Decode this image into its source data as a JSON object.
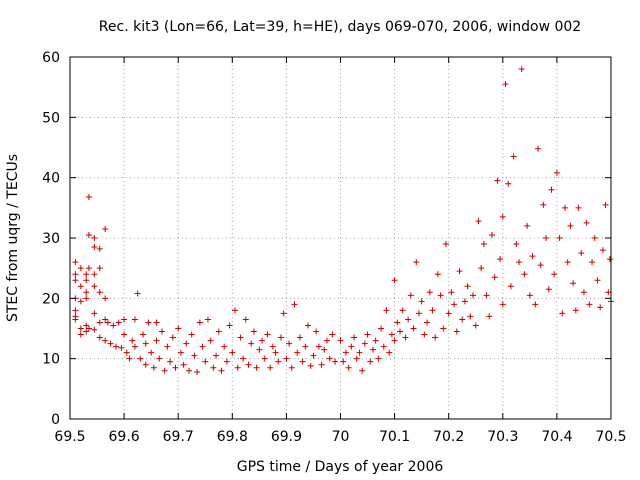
{
  "chart_data": {
    "type": "scatter",
    "title": "Rec. kit3 (Lon=66, Lat=39, h=HE), days 069-070, 2006, window 002",
    "xlabel": "GPS time / Days of year 2006",
    "ylabel": "STEC from uqrg / TECUs",
    "xlim": [
      69.5,
      70.5
    ],
    "ylim": [
      0,
      60
    ],
    "xticks": [
      "69.5",
      "69.6",
      "69.7",
      "69.8",
      "69.9",
      "70",
      "70.1",
      "70.2",
      "70.3",
      "70.4",
      "70.5"
    ],
    "yticks": [
      "0",
      "10",
      "20",
      "30",
      "40",
      "50",
      "60"
    ],
    "grid": true,
    "marker": "plus",
    "color": "#cc0000",
    "series": [
      {
        "name": "STEC",
        "points": [
          [
            69.51,
            26
          ],
          [
            69.51,
            24
          ],
          [
            69.51,
            23
          ],
          [
            69.51,
            20
          ],
          [
            69.51,
            18
          ],
          [
            69.51,
            17
          ],
          [
            69.51,
            16.5
          ],
          [
            69.52,
            25
          ],
          [
            69.52,
            22
          ],
          [
            69.52,
            19.5
          ],
          [
            69.52,
            15
          ],
          [
            69.52,
            14
          ],
          [
            69.53,
            24
          ],
          [
            69.53,
            23
          ],
          [
            69.53,
            21
          ],
          [
            69.53,
            20
          ],
          [
            69.53,
            15.5
          ],
          [
            69.53,
            14.5
          ],
          [
            69.535,
            36.8
          ],
          [
            69.535,
            30.5
          ],
          [
            69.535,
            25
          ],
          [
            69.535,
            15
          ],
          [
            69.545,
            30
          ],
          [
            69.545,
            28.5
          ],
          [
            69.545,
            24
          ],
          [
            69.545,
            22
          ],
          [
            69.545,
            17.5
          ],
          [
            69.545,
            14.8
          ],
          [
            69.555,
            28.2
          ],
          [
            69.555,
            25
          ],
          [
            69.555,
            21
          ],
          [
            69.555,
            16
          ],
          [
            69.555,
            13.5
          ],
          [
            69.565,
            31.5
          ],
          [
            69.565,
            20
          ],
          [
            69.565,
            16.5
          ],
          [
            69.565,
            13
          ],
          [
            69.57,
            16
          ],
          [
            69.575,
            12.5
          ],
          [
            69.58,
            15.5
          ],
          [
            69.585,
            12
          ],
          [
            69.59,
            16
          ],
          [
            69.595,
            11.8
          ],
          [
            69.6,
            16.5
          ],
          [
            69.6,
            14
          ],
          [
            69.605,
            11
          ],
          [
            69.61,
            10
          ],
          [
            69.615,
            13
          ],
          [
            69.62,
            12
          ],
          [
            69.62,
            16.5
          ],
          [
            69.625,
            20.8
          ],
          [
            69.63,
            10
          ],
          [
            69.635,
            14
          ],
          [
            69.64,
            9
          ],
          [
            69.64,
            12.5
          ],
          [
            69.645,
            16
          ],
          [
            69.65,
            11
          ],
          [
            69.655,
            8.5
          ],
          [
            69.66,
            13
          ],
          [
            69.66,
            16
          ],
          [
            69.665,
            10
          ],
          [
            69.67,
            14.5
          ],
          [
            69.675,
            8
          ],
          [
            69.68,
            12
          ],
          [
            69.685,
            9.5
          ],
          [
            69.69,
            13.5
          ],
          [
            69.695,
            8.5
          ],
          [
            69.7,
            15
          ],
          [
            69.705,
            11
          ],
          [
            69.71,
            9
          ],
          [
            69.715,
            12.5
          ],
          [
            69.72,
            8
          ],
          [
            69.725,
            14
          ],
          [
            69.73,
            10.5
          ],
          [
            69.735,
            7.8
          ],
          [
            69.74,
            16
          ],
          [
            69.745,
            12
          ],
          [
            69.75,
            9.5
          ],
          [
            69.755,
            16.5
          ],
          [
            69.76,
            13
          ],
          [
            69.765,
            8.5
          ],
          [
            69.77,
            10.5
          ],
          [
            69.775,
            14.5
          ],
          [
            69.78,
            8
          ],
          [
            69.785,
            12
          ],
          [
            69.79,
            9.5
          ],
          [
            69.795,
            15.5
          ],
          [
            69.8,
            11
          ],
          [
            69.805,
            18
          ],
          [
            69.81,
            8.5
          ],
          [
            69.815,
            13.5
          ],
          [
            69.82,
            10
          ],
          [
            69.825,
            16.5
          ],
          [
            69.83,
            9
          ],
          [
            69.835,
            12.5
          ],
          [
            69.84,
            14.5
          ],
          [
            69.845,
            8.5
          ],
          [
            69.85,
            11.5
          ],
          [
            69.855,
            13
          ],
          [
            69.86,
            10
          ],
          [
            69.865,
            14
          ],
          [
            69.87,
            8.5
          ],
          [
            69.875,
            12
          ],
          [
            69.88,
            11
          ],
          [
            69.885,
            9.5
          ],
          [
            69.89,
            13.5
          ],
          [
            69.895,
            17.5
          ],
          [
            69.9,
            10
          ],
          [
            69.905,
            12.5
          ],
          [
            69.91,
            8.5
          ],
          [
            69.915,
            19
          ],
          [
            69.92,
            11
          ],
          [
            69.925,
            13.5
          ],
          [
            69.93,
            9.5
          ],
          [
            69.935,
            12
          ],
          [
            69.94,
            15.5
          ],
          [
            69.945,
            8.8
          ],
          [
            69.95,
            10.5
          ],
          [
            69.955,
            14.5
          ],
          [
            69.96,
            12
          ],
          [
            69.965,
            9
          ],
          [
            69.97,
            11.5
          ],
          [
            69.975,
            13
          ],
          [
            69.98,
            10
          ],
          [
            69.985,
            14
          ],
          [
            69.99,
            9.5
          ],
          [
            70.0,
            13
          ],
          [
            70.005,
            9.5
          ],
          [
            70.01,
            11
          ],
          [
            70.015,
            8.5
          ],
          [
            70.02,
            12
          ],
          [
            70.025,
            13.5
          ],
          [
            70.03,
            10
          ],
          [
            70.035,
            11
          ],
          [
            70.04,
            8
          ],
          [
            70.045,
            12.5
          ],
          [
            70.05,
            14
          ],
          [
            70.055,
            9.5
          ],
          [
            70.06,
            11.5
          ],
          [
            70.065,
            13
          ],
          [
            70.07,
            10
          ],
          [
            70.075,
            15
          ],
          [
            70.08,
            12
          ],
          [
            70.085,
            18
          ],
          [
            70.09,
            11
          ],
          [
            70.095,
            14
          ],
          [
            70.1,
            23
          ],
          [
            70.1,
            13
          ],
          [
            70.105,
            16
          ],
          [
            70.11,
            14.5
          ],
          [
            70.115,
            18
          ],
          [
            70.12,
            13.5
          ],
          [
            70.125,
            16.5
          ],
          [
            70.13,
            20.5
          ],
          [
            70.135,
            15
          ],
          [
            70.14,
            26
          ],
          [
            70.145,
            17.5
          ],
          [
            70.15,
            19.5
          ],
          [
            70.155,
            14
          ],
          [
            70.16,
            16
          ],
          [
            70.165,
            21
          ],
          [
            70.17,
            18
          ],
          [
            70.175,
            13.5
          ],
          [
            70.18,
            24
          ],
          [
            70.185,
            20.5
          ],
          [
            70.19,
            15
          ],
          [
            70.195,
            29
          ],
          [
            70.2,
            17.5
          ],
          [
            70.205,
            21
          ],
          [
            70.21,
            19
          ],
          [
            70.215,
            14.5
          ],
          [
            70.22,
            24.5
          ],
          [
            70.225,
            16.5
          ],
          [
            70.23,
            19.5
          ],
          [
            70.235,
            22
          ],
          [
            70.24,
            17
          ],
          [
            70.245,
            20.5
          ],
          [
            70.25,
            15.5
          ],
          [
            70.255,
            32.8
          ],
          [
            70.26,
            25
          ],
          [
            70.265,
            29
          ],
          [
            70.27,
            20.5
          ],
          [
            70.275,
            17
          ],
          [
            70.28,
            30.5
          ],
          [
            70.285,
            23.5
          ],
          [
            70.29,
            39.5
          ],
          [
            70.295,
            26.5
          ],
          [
            70.3,
            19
          ],
          [
            70.3,
            33.5
          ],
          [
            70.305,
            55.5
          ],
          [
            70.31,
            39
          ],
          [
            70.315,
            22
          ],
          [
            70.32,
            43.5
          ],
          [
            70.325,
            29
          ],
          [
            70.33,
            26
          ],
          [
            70.335,
            58
          ],
          [
            70.34,
            24
          ],
          [
            70.345,
            32
          ],
          [
            70.35,
            20.5
          ],
          [
            70.355,
            27
          ],
          [
            70.36,
            19
          ],
          [
            70.365,
            44.8
          ],
          [
            70.37,
            25.5
          ],
          [
            70.375,
            35.5
          ],
          [
            70.38,
            30
          ],
          [
            70.385,
            21.5
          ],
          [
            70.39,
            38
          ],
          [
            70.395,
            24
          ],
          [
            70.4,
            40.8
          ],
          [
            70.405,
            30
          ],
          [
            70.41,
            17.5
          ],
          [
            70.415,
            35
          ],
          [
            70.42,
            26
          ],
          [
            70.425,
            32
          ],
          [
            70.43,
            22.5
          ],
          [
            70.435,
            18
          ],
          [
            70.44,
            35
          ],
          [
            70.445,
            27.5
          ],
          [
            70.45,
            21
          ],
          [
            70.455,
            32.5
          ],
          [
            70.46,
            19
          ],
          [
            70.465,
            26
          ],
          [
            70.47,
            30
          ],
          [
            70.475,
            23
          ],
          [
            70.48,
            18.5
          ],
          [
            70.485,
            28
          ],
          [
            70.49,
            35.5
          ],
          [
            70.495,
            21
          ],
          [
            70.498,
            26.5
          ],
          [
            70.5,
            19.5
          ]
        ]
      }
    ]
  }
}
